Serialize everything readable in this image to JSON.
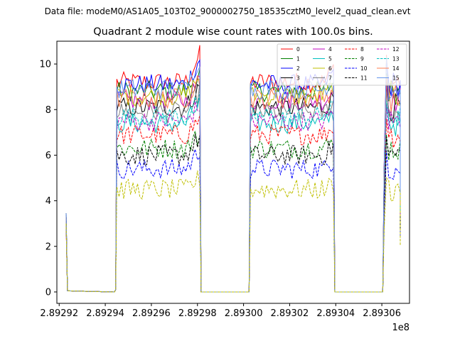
{
  "figure": {
    "suptitle": "Data file: modeM0/AS1A05_103T02_9000002750_18535cztM0_level2_quad_clean.evt",
    "title": "Quadrant 2 module wise count rates with 100.0s bins."
  },
  "chart_data": {
    "type": "line",
    "title": "Quadrant 2 module wise count rates with 100.0s bins.",
    "xlabel": "",
    "ylabel": "",
    "x_offset_label": "1e8",
    "xlim": [
      289291900,
      289307200
    ],
    "ylim": [
      -0.5,
      11.0
    ],
    "x_ticks": [
      289292000,
      289294000,
      289296000,
      289298000,
      289300000,
      289302000,
      289304000,
      289306000
    ],
    "x_tick_labels": [
      "2.89292",
      "2.89294",
      "2.89296",
      "2.89298",
      "2.89300",
      "2.89302",
      "2.89304",
      "2.89306"
    ],
    "y_ticks": [
      0,
      2,
      4,
      6,
      8,
      10
    ],
    "y_tick_labels": [
      "0",
      "2",
      "4",
      "6",
      "8",
      "10"
    ],
    "grid": false,
    "legend_position": "top-right",
    "bin_seconds": 100,
    "segments": [
      {
        "start": 289292300,
        "end": 289292400
      },
      {
        "start": 289294500,
        "end": 289298100
      },
      {
        "start": 289300300,
        "end": 289303900
      },
      {
        "start": 289306100,
        "end": 289306800
      }
    ],
    "series": [
      {
        "name": "0",
        "color": "#ff0000",
        "dash": "solid",
        "level": 9.2,
        "peak": 10.4
      },
      {
        "name": "1",
        "color": "#008000",
        "dash": "solid",
        "level": 8.8,
        "peak": 9.6
      },
      {
        "name": "2",
        "color": "#0000ff",
        "dash": "solid",
        "level": 9.1,
        "peak": 10.2
      },
      {
        "name": "3",
        "color": "#000000",
        "dash": "solid",
        "level": 8.1,
        "peak": 9.0
      },
      {
        "name": "4",
        "color": "#bf00bf",
        "dash": "solid",
        "level": 8.4,
        "peak": 9.3
      },
      {
        "name": "5",
        "color": "#00bfbf",
        "dash": "solid",
        "level": 7.4,
        "peak": 8.3
      },
      {
        "name": "6",
        "color": "#bfbf00",
        "dash": "solid",
        "level": 8.6,
        "peak": 9.5
      },
      {
        "name": "7",
        "color": "#808080",
        "dash": "solid",
        "level": 7.9,
        "peak": 8.8
      },
      {
        "name": "8",
        "color": "#ff0000",
        "dash": "dashed",
        "level": 6.9,
        "peak": 7.6
      },
      {
        "name": "9",
        "color": "#008000",
        "dash": "dashed",
        "level": 6.3,
        "peak": 6.9
      },
      {
        "name": "10",
        "color": "#0000ff",
        "dash": "dashed",
        "level": 5.4,
        "peak": 6.2
      },
      {
        "name": "11",
        "color": "#000000",
        "dash": "dashed",
        "level": 6.0,
        "peak": 6.8
      },
      {
        "name": "12",
        "color": "#bf00bf",
        "dash": "dashed",
        "level": 7.5,
        "peak": 8.2
      },
      {
        "name": "13",
        "color": "#00bfbf",
        "dash": "dashed",
        "level": 7.7,
        "peak": 8.4
      },
      {
        "name": "14",
        "color": "#ff7f50",
        "dash": "solid",
        "level": 8.5,
        "peak": 9.4
      },
      {
        "name": "15",
        "color": "#6495ed",
        "dash": "solid",
        "level": 8.9,
        "peak": 10.3
      },
      {
        "name": "",
        "color": "#bfbf00",
        "dash": "dashed",
        "level": 4.5,
        "peak": 5.0
      }
    ]
  }
}
